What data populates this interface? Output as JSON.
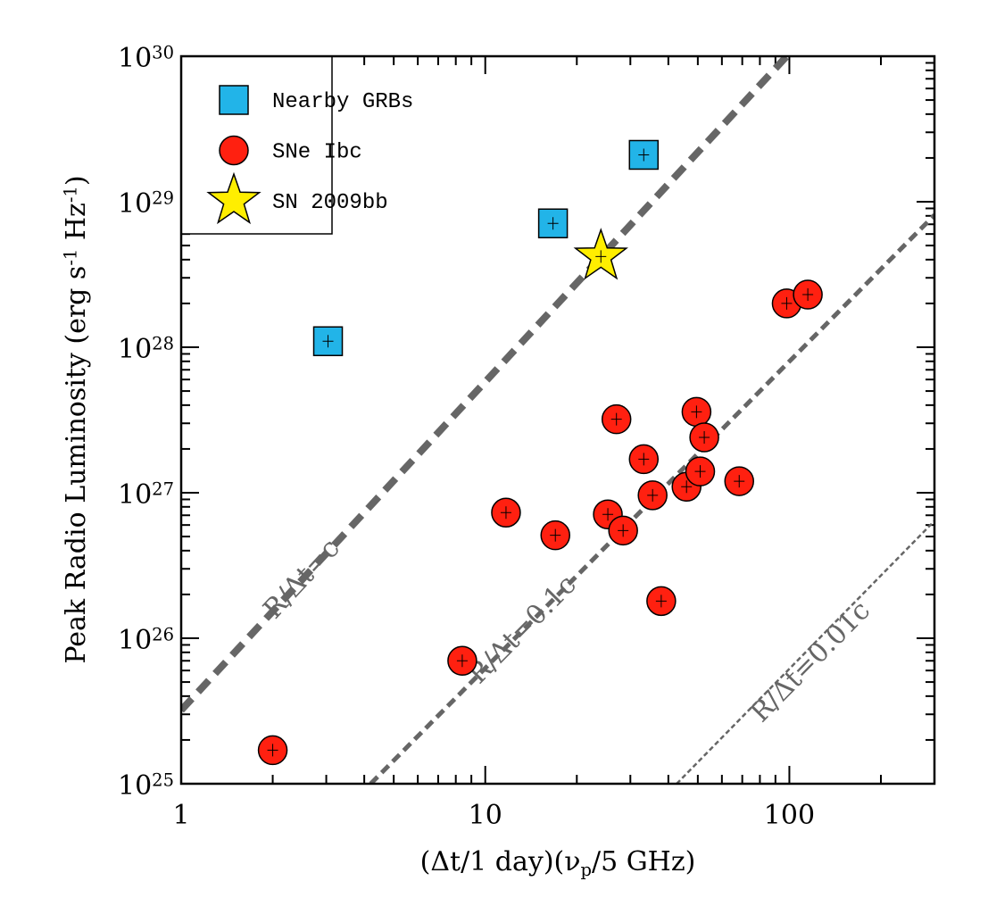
{
  "chart_data": {
    "type": "scatter",
    "xlabel": "(Δt/1 day)(ν_{p}/5 GHz)",
    "ylabel": "Peak Radio Luminosity (erg s^{-1} Hz^{-1})",
    "log_x": true,
    "log_y": true,
    "xlim": [
      1,
      300
    ],
    "ylim": [
      1e+25,
      1e+30
    ],
    "xticks": [
      1,
      10,
      100
    ],
    "yticks": [
      {
        "value": 1e+25,
        "label": "10^{25}"
      },
      {
        "value": 1e+26,
        "label": "10^{26}"
      },
      {
        "value": 1e+27,
        "label": "10^{27}"
      },
      {
        "value": 1e+28,
        "label": "10^{28}"
      },
      {
        "value": 1e+29,
        "label": "10^{29}"
      },
      {
        "value": 1e+30,
        "label": "10^{30}"
      }
    ],
    "legend": "upper left",
    "series": [
      {
        "name": "Nearby GRBs",
        "color": "#22b4e8",
        "marker": "square",
        "x": [
          3.04,
          16.7,
          33.2
        ],
        "values": [
          1.1e+28,
          7.1e+28,
          2.1e+29
        ]
      },
      {
        "name": "SNe Ibc",
        "color": "#ff2010",
        "marker": "circle",
        "x": [
          2.0,
          8.4,
          11.7,
          17,
          25.3,
          28.4,
          27,
          33.2,
          35.5,
          37.9,
          45.9,
          49.5,
          52.5,
          50.9,
          68.4,
          98,
          115
        ],
        "values": [
          1.7e+25,
          7e+25,
          7.3e+26,
          5.1e+26,
          7.1e+26,
          5.5e+26,
          3.2e+27,
          1.7e+27,
          9.6e+26,
          1.8e+26,
          1.1e+27,
          3.6e+27,
          2.4e+27,
          1.4e+27,
          1.2e+27,
          2e+28,
          2.3e+28
        ]
      },
      {
        "name": "SN 2009bb",
        "color": "#ffee00",
        "marker": "star",
        "x": [
          24
        ],
        "values": [
          4.2e+28
        ]
      }
    ],
    "lines": [
      {
        "label": "R/Δt=c",
        "color": "#666666",
        "line_width": 8,
        "x": [
          1,
          98
        ],
        "values": [
          3.2e+25,
          1e+30
        ]
      },
      {
        "label": "R/Δt=0.1c",
        "color": "#666666",
        "line_width": 5,
        "x": [
          4.2,
          300
        ],
        "values": [
          1e+25,
          8.1e+28
        ]
      },
      {
        "label": "R/Δt=0.01c",
        "color": "#666666",
        "line_width": 2.5,
        "x": [
          42.6,
          300
        ],
        "values": [
          1e+25,
          6.4e+26
        ]
      }
    ]
  }
}
